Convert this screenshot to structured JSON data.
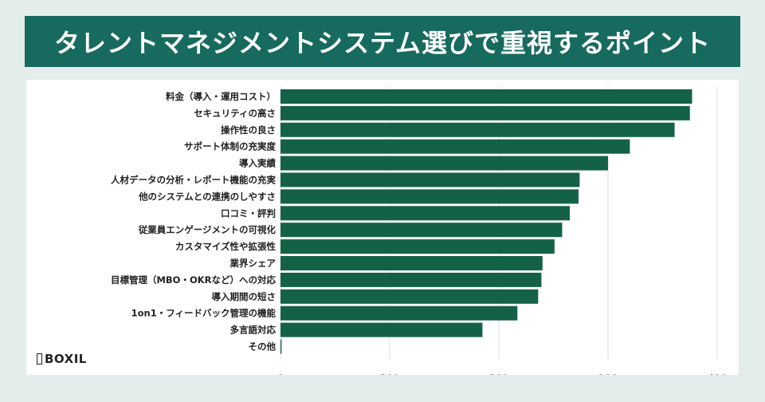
{
  "title": "タレントマネジメントシステム選びで重視するポイント",
  "logo": {
    "text": "BOXIL",
    "icon": "boxil-logo-icon"
  },
  "colors": {
    "header": "#176a5e",
    "bar": "#146245",
    "background": "#e3eeec"
  },
  "chart_data": {
    "type": "bar",
    "orientation": "horizontal",
    "categories": [
      "料金（導入・運用コスト）",
      "セキュリティの高さ",
      "操作性の良さ",
      "サポート体制の充実度",
      "導入実績",
      "人材データの分析・レポート機能の充実",
      "他のシステムとの連携のしやすさ",
      "口コミ・評判",
      "従業員エンゲージメントの可視化",
      "カスタマイズ性や拡張性",
      "業界シェア",
      "目標管理（MBO・OKRなど）への対応",
      "導入期間の短さ",
      "1on1・フィードバック管理の機能",
      "多言語対応",
      "その他"
    ],
    "values": [
      377,
      375,
      361,
      320,
      300,
      274,
      273,
      265,
      258,
      251,
      240,
      239,
      236,
      217,
      185,
      1
    ],
    "xlim": [
      0,
      400
    ],
    "xticks": [
      0,
      100,
      200,
      300,
      400
    ],
    "grid": true,
    "legend": "none",
    "xlabel": "",
    "ylabel": ""
  }
}
